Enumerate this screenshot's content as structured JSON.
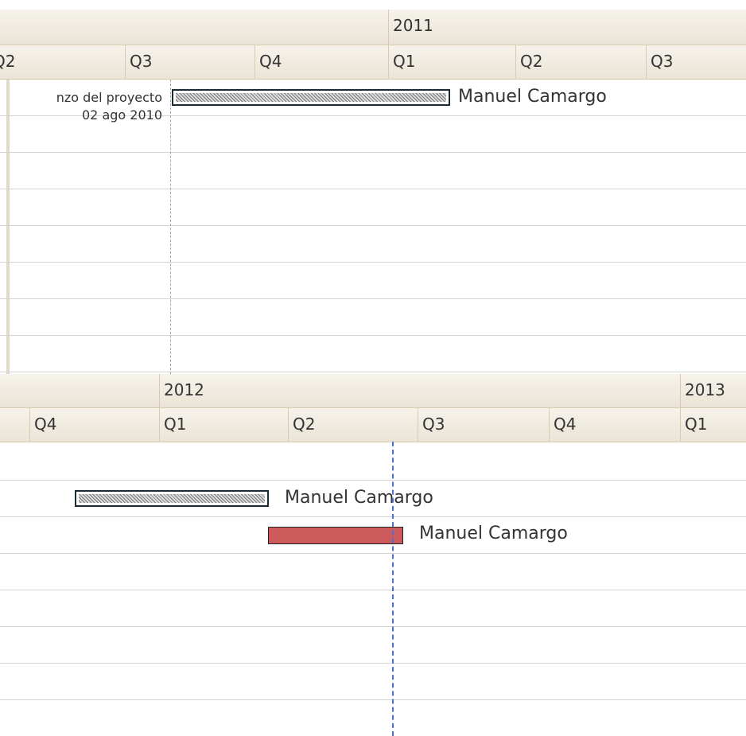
{
  "top_panel": {
    "years": [
      "2011"
    ],
    "quarters": [
      "Q2",
      "Q3",
      "Q4",
      "Q1",
      "Q2",
      "Q3"
    ],
    "milestone": {
      "label": "nzo del proyecto",
      "date": "02 ago 2010"
    },
    "tasks": [
      {
        "resource": "Manuel Camargo"
      }
    ]
  },
  "bottom_panel": {
    "years": [
      "2012",
      "2013"
    ],
    "quarters": [
      "Q4",
      "Q1",
      "Q2",
      "Q3",
      "Q4",
      "Q1"
    ],
    "tasks": [
      {
        "resource": "Manuel Camargo"
      },
      {
        "resource": "Manuel Camargo"
      }
    ]
  }
}
